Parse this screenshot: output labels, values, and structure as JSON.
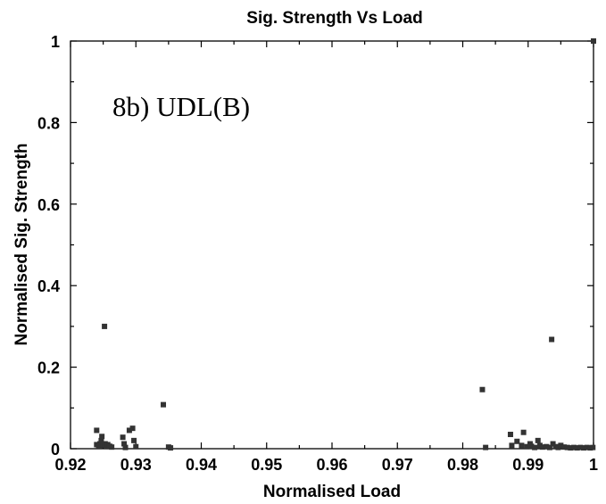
{
  "chart_data": {
    "type": "scatter",
    "title": "Sig. Strength Vs Load",
    "xlabel": "Normalised Load",
    "ylabel": "Normalised Sig. Strength",
    "annotation": "8b) UDL(B)",
    "xlim": [
      0.92,
      1.0
    ],
    "ylim": [
      0,
      1.0
    ],
    "xticks": [
      "0.92",
      "0.93",
      "0.94",
      "0.95",
      "0.96",
      "0.97",
      "0.98",
      "0.99",
      "1"
    ],
    "yticks": [
      "0",
      "0.2",
      "0.4",
      "0.6",
      "0.8",
      "1"
    ],
    "grid": false,
    "marker_color": "#333333",
    "points": [
      [
        0.924,
        0.045
      ],
      [
        0.924,
        0.01
      ],
      [
        0.9243,
        0.005
      ],
      [
        0.9245,
        0.012
      ],
      [
        0.9247,
        0.02
      ],
      [
        0.9248,
        0.03
      ],
      [
        0.925,
        0.008
      ],
      [
        0.9252,
        0.3
      ],
      [
        0.9253,
        0.012
      ],
      [
        0.9255,
        0.005
      ],
      [
        0.9257,
        0.01
      ],
      [
        0.926,
        0.006
      ],
      [
        0.9263,
        0.004
      ],
      [
        0.928,
        0.028
      ],
      [
        0.9282,
        0.012
      ],
      [
        0.9284,
        0.003
      ],
      [
        0.929,
        0.045
      ],
      [
        0.9295,
        0.05
      ],
      [
        0.9297,
        0.02
      ],
      [
        0.93,
        0.005
      ],
      [
        0.9342,
        0.108
      ],
      [
        0.935,
        0.004
      ],
      [
        0.9353,
        0.002
      ],
      [
        0.983,
        0.145
      ],
      [
        0.9835,
        0.003
      ],
      [
        0.9873,
        0.035
      ],
      [
        0.9875,
        0.008
      ],
      [
        0.9883,
        0.018
      ],
      [
        0.989,
        0.008
      ],
      [
        0.9893,
        0.04
      ],
      [
        0.9898,
        0.005
      ],
      [
        0.9903,
        0.012
      ],
      [
        0.9905,
        0.006
      ],
      [
        0.991,
        0.003
      ],
      [
        0.9915,
        0.02
      ],
      [
        0.9918,
        0.008
      ],
      [
        0.9922,
        0.004
      ],
      [
        0.9928,
        0.005
      ],
      [
        0.9933,
        0.003
      ],
      [
        0.9936,
        0.268
      ],
      [
        0.9938,
        0.012
      ],
      [
        0.9942,
        0.005
      ],
      [
        0.9946,
        0.003
      ],
      [
        0.995,
        0.008
      ],
      [
        0.9955,
        0.004
      ],
      [
        0.996,
        0.003
      ],
      [
        0.9965,
        0.002
      ],
      [
        0.997,
        0.003
      ],
      [
        0.9975,
        0.002
      ],
      [
        0.998,
        0.003
      ],
      [
        0.9985,
        0.002
      ],
      [
        0.999,
        0.003
      ],
      [
        0.9995,
        0.002
      ],
      [
        0.9999,
        0.003
      ],
      [
        1.0,
        1.0
      ]
    ]
  }
}
